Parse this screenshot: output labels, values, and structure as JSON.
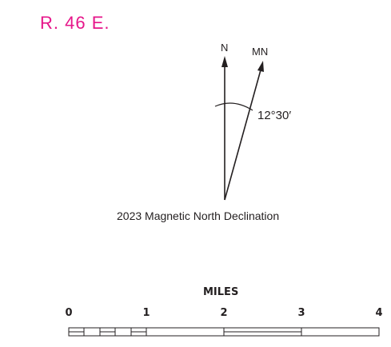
{
  "range_label": "R. 46 E.",
  "north_arrow": {
    "true_north_label": "N",
    "magnetic_north_label": "MN",
    "declination_angle": "12°30′",
    "caption": "2023 Magnetic North Declination"
  },
  "scale_bar": {
    "unit_label": "MILES",
    "tick_labels": [
      "0",
      "1",
      "2",
      "3",
      "4"
    ]
  },
  "colors": {
    "range_label": "#e6168a",
    "linework": "#231f20"
  }
}
